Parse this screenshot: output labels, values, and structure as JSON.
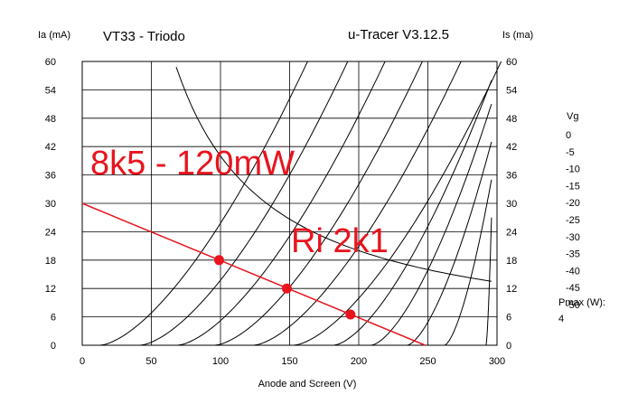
{
  "chart_data": {
    "type": "line",
    "title": "VT33 - Triodo",
    "subtitle": "u-Tracer V3.12.5",
    "xlabel": "Anode and Screen (V)",
    "ylabel_left": "Ia (mA)",
    "ylabel_right": "Is (ma)",
    "xlim": [
      0,
      300
    ],
    "ylim": [
      0,
      60
    ],
    "x_ticks": [
      "0",
      "50",
      "100",
      "150",
      "200",
      "250",
      "300"
    ],
    "y_ticks": [
      "0",
      "6",
      "12",
      "18",
      "24",
      "30",
      "36",
      "42",
      "48",
      "54",
      "60"
    ],
    "grid": true,
    "legend_title": "Vg",
    "legend": [
      "0",
      "-5",
      "-10",
      "-15",
      "-20",
      "-25",
      "-30",
      "-35",
      "-40",
      "-45",
      "-50"
    ],
    "pmax_label": "Pmax (W):",
    "pmax_value": "4",
    "curve_offsets": [
      13,
      42,
      69,
      96,
      124,
      153,
      182,
      209,
      235,
      262,
      292
    ],
    "curve_end_y": [
      60,
      60,
      60,
      60,
      60,
      60,
      56,
      51,
      43,
      35,
      27
    ],
    "pmax_curve": {
      "type": "hyperbola",
      "watts": 4,
      "x_range": [
        68,
        296
      ]
    },
    "load_line": {
      "x": [
        0,
        248
      ],
      "y": [
        30,
        0
      ],
      "color": "#e8141e"
    },
    "operating_points": [
      {
        "x": 99,
        "y": 18
      },
      {
        "x": 148,
        "y": 12
      },
      {
        "x": 194,
        "y": 6.5
      }
    ],
    "annotations": [
      {
        "text": "8k5 - 120mW"
      },
      {
        "text": "Ri 2k1"
      }
    ],
    "colors": {
      "load_line": "#e8141e",
      "curves": "#000000",
      "grid": "#000000"
    }
  }
}
